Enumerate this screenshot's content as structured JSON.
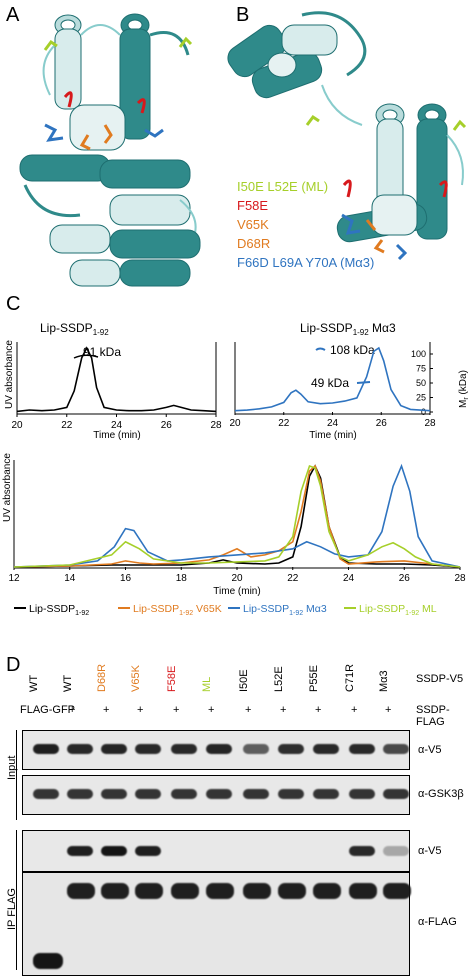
{
  "panels": {
    "a": "A",
    "b": "B",
    "c": "C",
    "d": "D"
  },
  "mutations": {
    "ml": "I50E L52E (ML)",
    "f58e": "F58E",
    "v65k": "V65K",
    "d68r": "D68R",
    "ma3": "F66D L69A Y70A (Mα3)"
  },
  "colors": {
    "ml": "#a6cf2a",
    "f58e": "#d7191c",
    "v65k": "#e07b20",
    "d68r": "#e07b20",
    "ma3": "#2f74c0",
    "helix_dark": "#2f8a8a",
    "helix_light": "#d8ecec"
  },
  "chart_data": [
    {
      "type": "line",
      "title": "Lip-SSDP1-92",
      "xlabel": "Time (min)",
      "ylabel": "UV absorbance",
      "xlim": [
        20,
        28
      ],
      "xticks": [
        "20",
        "22",
        "24",
        "26",
        "28"
      ],
      "annotation": "91 kDa",
      "series": [
        {
          "name": "Lip-SSDP1-92",
          "color": "#000000",
          "x": [
            20.0,
            20.5,
            21.0,
            21.5,
            22.0,
            22.3,
            22.6,
            22.8,
            23.0,
            23.2,
            23.5,
            24.0,
            24.5,
            25.0,
            25.5,
            26.0,
            26.3,
            26.6,
            27.0,
            27.5,
            28.0
          ],
          "y": [
            0.04,
            0.06,
            0.05,
            0.06,
            0.1,
            0.35,
            0.85,
            1.0,
            0.85,
            0.4,
            0.1,
            0.06,
            0.05,
            0.05,
            0.06,
            0.1,
            0.13,
            0.1,
            0.06,
            0.05,
            0.04
          ]
        }
      ]
    },
    {
      "type": "line",
      "title": "Lip-SSDP1-92 Mα3",
      "xlabel": "Time (min)",
      "ylabel": "Mr (kDa)",
      "xlim": [
        20,
        28
      ],
      "xticks": [
        "20",
        "22",
        "24",
        "26",
        "28"
      ],
      "y2lim": [
        0,
        100
      ],
      "y2ticks": [
        "0",
        "25",
        "50",
        "75",
        "100"
      ],
      "annotations": [
        "108 kDa",
        "49 kDa"
      ],
      "series": [
        {
          "name": "Lip-SSDP1-92 Mα3",
          "color": "#2f74c0",
          "x": [
            20.0,
            20.5,
            21.0,
            21.5,
            22.0,
            22.3,
            22.5,
            22.7,
            23.0,
            23.5,
            24.0,
            24.5,
            25.0,
            25.4,
            25.7,
            25.9,
            26.1,
            26.4,
            26.8,
            27.2,
            28.0
          ],
          "y": [
            0.02,
            0.03,
            0.05,
            0.08,
            0.15,
            0.3,
            0.34,
            0.28,
            0.16,
            0.13,
            0.14,
            0.17,
            0.22,
            0.55,
            0.95,
            1.0,
            0.8,
            0.35,
            0.1,
            0.04,
            0.02
          ]
        }
      ]
    },
    {
      "type": "line",
      "xlabel": "Time (min)",
      "ylabel": "UV absorbance",
      "xlim": [
        12,
        28
      ],
      "xticks": [
        "12",
        "14",
        "16",
        "18",
        "20",
        "22",
        "24",
        "26",
        "28"
      ],
      "series": [
        {
          "name": "Lip-SSDP1-92",
          "color": "#000000",
          "x": [
            12,
            14,
            15.5,
            16,
            16.5,
            17,
            18,
            19,
            19.5,
            20,
            21,
            21.5,
            22,
            22.3,
            22.6,
            22.8,
            23,
            23.3,
            23.7,
            24,
            25,
            26,
            27,
            28
          ],
          "y": [
            0,
            0.01,
            0.02,
            0.02,
            0.02,
            0.02,
            0.02,
            0.04,
            0.07,
            0.04,
            0.03,
            0.04,
            0.1,
            0.4,
            0.9,
            1.0,
            0.88,
            0.4,
            0.1,
            0.04,
            0.03,
            0.03,
            0.02,
            0.0
          ]
        },
        {
          "name": "Lip-SSDP1-92 V65K",
          "color": "#e07b20",
          "x": [
            12,
            14,
            15.5,
            16,
            16.5,
            17,
            18,
            19,
            19.5,
            20,
            20.5,
            21,
            21.5,
            22,
            22.3,
            22.6,
            22.8,
            23,
            23.3,
            23.7,
            24,
            25,
            26,
            27,
            28
          ],
          "y": [
            0,
            0.01,
            0.03,
            0.06,
            0.04,
            0.03,
            0.04,
            0.07,
            0.12,
            0.18,
            0.1,
            0.12,
            0.16,
            0.25,
            0.55,
            0.95,
            1.0,
            0.85,
            0.4,
            0.08,
            0.03,
            0.05,
            0.06,
            0.03,
            0.0
          ]
        },
        {
          "name": "Lip-SSDP1-92 Mα3",
          "color": "#2f74c0",
          "x": [
            12,
            14,
            15,
            15.6,
            16,
            16.3,
            16.8,
            17.5,
            18,
            19,
            20,
            21,
            22,
            22.5,
            23,
            23.5,
            24,
            24.7,
            25.2,
            25.6,
            25.9,
            26.2,
            26.5,
            27,
            28
          ],
          "y": [
            0,
            0.02,
            0.06,
            0.2,
            0.38,
            0.36,
            0.15,
            0.06,
            0.07,
            0.1,
            0.12,
            0.14,
            0.18,
            0.25,
            0.2,
            0.13,
            0.1,
            0.12,
            0.35,
            0.8,
            1.0,
            0.75,
            0.3,
            0.06,
            0.0
          ]
        },
        {
          "name": "Lip-SSDP1-92 ML",
          "color": "#a6cf2a",
          "x": [
            12,
            14,
            15.5,
            16,
            16.5,
            17,
            18,
            19,
            20,
            21,
            21.5,
            22,
            22.3,
            22.6,
            22.8,
            23,
            23.3,
            23.7,
            24,
            24.7,
            25.2,
            25.6,
            26,
            26.4,
            27,
            28
          ],
          "y": [
            0,
            0.02,
            0.12,
            0.25,
            0.18,
            0.08,
            0.04,
            0.04,
            0.05,
            0.06,
            0.1,
            0.3,
            0.75,
            1.0,
            0.98,
            0.8,
            0.35,
            0.1,
            0.06,
            0.12,
            0.2,
            0.24,
            0.18,
            0.1,
            0.03,
            0.0
          ]
        }
      ]
    }
  ],
  "legend_c": [
    {
      "label": "Lip-SSDP1-92",
      "color": "#000000"
    },
    {
      "label": "Lip-SSDP1-92 V65K",
      "color": "#e07b20"
    },
    {
      "label": "Lip-SSDP1-92 Mα3",
      "color": "#2f74c0"
    },
    {
      "label": "Lip-SSDP1-92 ML",
      "color": "#a6cf2a"
    }
  ],
  "blot": {
    "lanes": [
      {
        "label": "WT",
        "color": "#000000"
      },
      {
        "label": "WT",
        "color": "#000000"
      },
      {
        "label": "D68R",
        "color": "#e07b20"
      },
      {
        "label": "V65K",
        "color": "#e07b20"
      },
      {
        "label": "F58E",
        "color": "#d7191c"
      },
      {
        "label": "ML",
        "color": "#a6cf2a"
      },
      {
        "label": "I50E",
        "color": "#000000"
      },
      {
        "label": "L52E",
        "color": "#000000"
      },
      {
        "label": "P55E",
        "color": "#000000"
      },
      {
        "label": "C71R",
        "color": "#000000"
      },
      {
        "label": "Mα3",
        "color": "#000000"
      }
    ],
    "flag_gfp": "FLAG-GFP",
    "plus": "+",
    "ssdp_v5": "SSDP-V5",
    "ssdp_flag": "SSDP-FLAG",
    "input": "Input",
    "ip_flag": "IP FLAG",
    "a_v5": "α-V5",
    "a_gsk": "α-GSK3β",
    "a_flag": "α-FLAG"
  }
}
